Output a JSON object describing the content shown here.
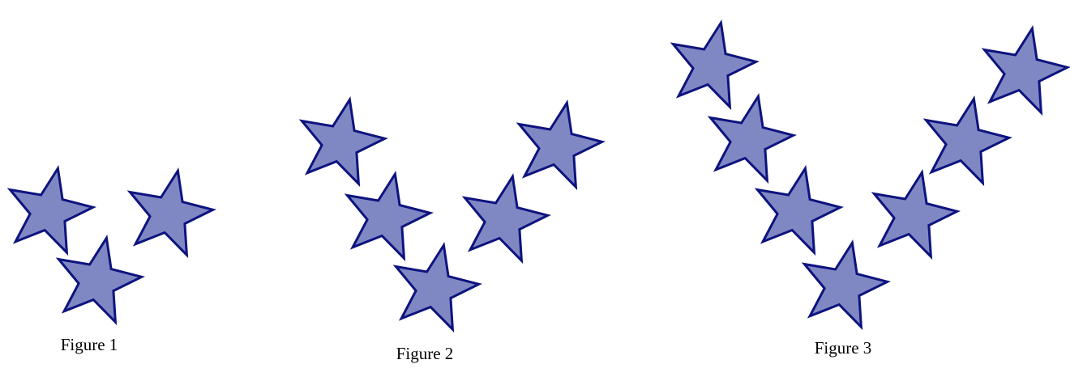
{
  "style": {
    "star_fill": "#8088c4",
    "star_stroke": "#0d137e",
    "background": "#ffffff"
  },
  "figures": [
    {
      "caption": "Figure 1",
      "star_count": 3
    },
    {
      "caption": "Figure 2",
      "star_count": 5
    },
    {
      "caption": "Figure 3",
      "star_count": 7
    }
  ]
}
